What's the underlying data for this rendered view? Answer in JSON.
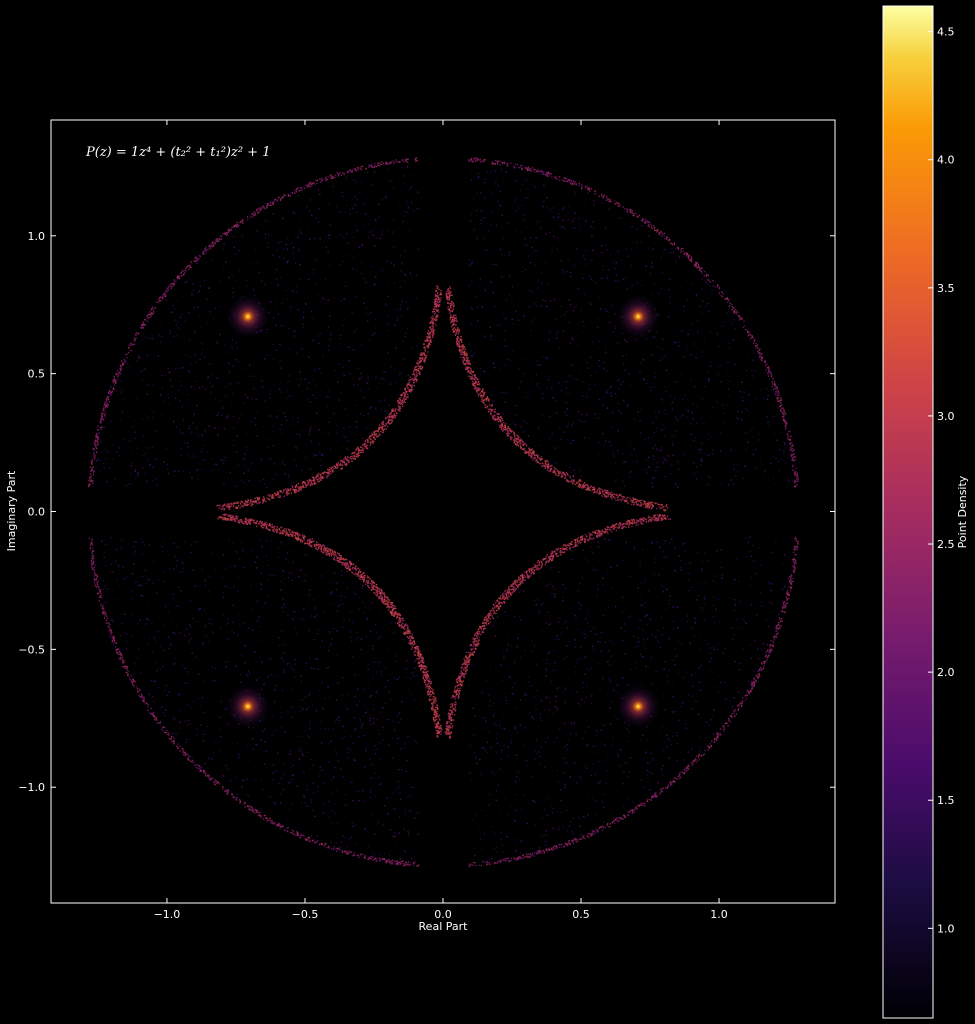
{
  "chart_data": {
    "type": "heatmap",
    "title": "",
    "annotation": "P(z) = 1z⁴ + (t₂² + t₁²)z² + 1",
    "xlabel": "Real Part",
    "ylabel": "Imaginary Part",
    "xlim": [
      -1.42,
      1.42
    ],
    "ylim": [
      -1.42,
      1.42
    ],
    "x_ticks": [
      -1.0,
      -0.5,
      0.0,
      0.5,
      1.0
    ],
    "x_tick_labels": [
      "−1.0",
      "−0.5",
      "0.0",
      "0.5",
      "1.0"
    ],
    "y_ticks": [
      1.0,
      0.5,
      0.0,
      -0.5,
      -1.0
    ],
    "y_tick_labels": [
      "1.0",
      "0.5",
      "0.0",
      "−0.5",
      "−1.0"
    ],
    "grid": false,
    "colormap": "inferno",
    "background": "#000000",
    "colorbar": {
      "label": "Point Density",
      "range": [
        0.65,
        4.6
      ],
      "ticks": [
        1.0,
        1.5,
        2.0,
        2.5,
        3.0,
        3.5,
        4.0,
        4.5
      ],
      "tick_labels": [
        "1.0",
        "1.5",
        "2.0",
        "2.5",
        "3.0",
        "3.5",
        "4.0",
        "4.5"
      ]
    },
    "lobes": [
      {
        "center_x": -0.707,
        "center_y": 0.707,
        "peak_density": 4.5
      },
      {
        "center_x": 0.707,
        "center_y": 0.707,
        "peak_density": 4.5
      },
      {
        "center_x": -0.707,
        "center_y": -0.707,
        "peak_density": 4.5
      },
      {
        "center_x": 0.707,
        "center_y": -0.707,
        "peak_density": 4.5
      }
    ],
    "outer_radius": 1.29
  }
}
